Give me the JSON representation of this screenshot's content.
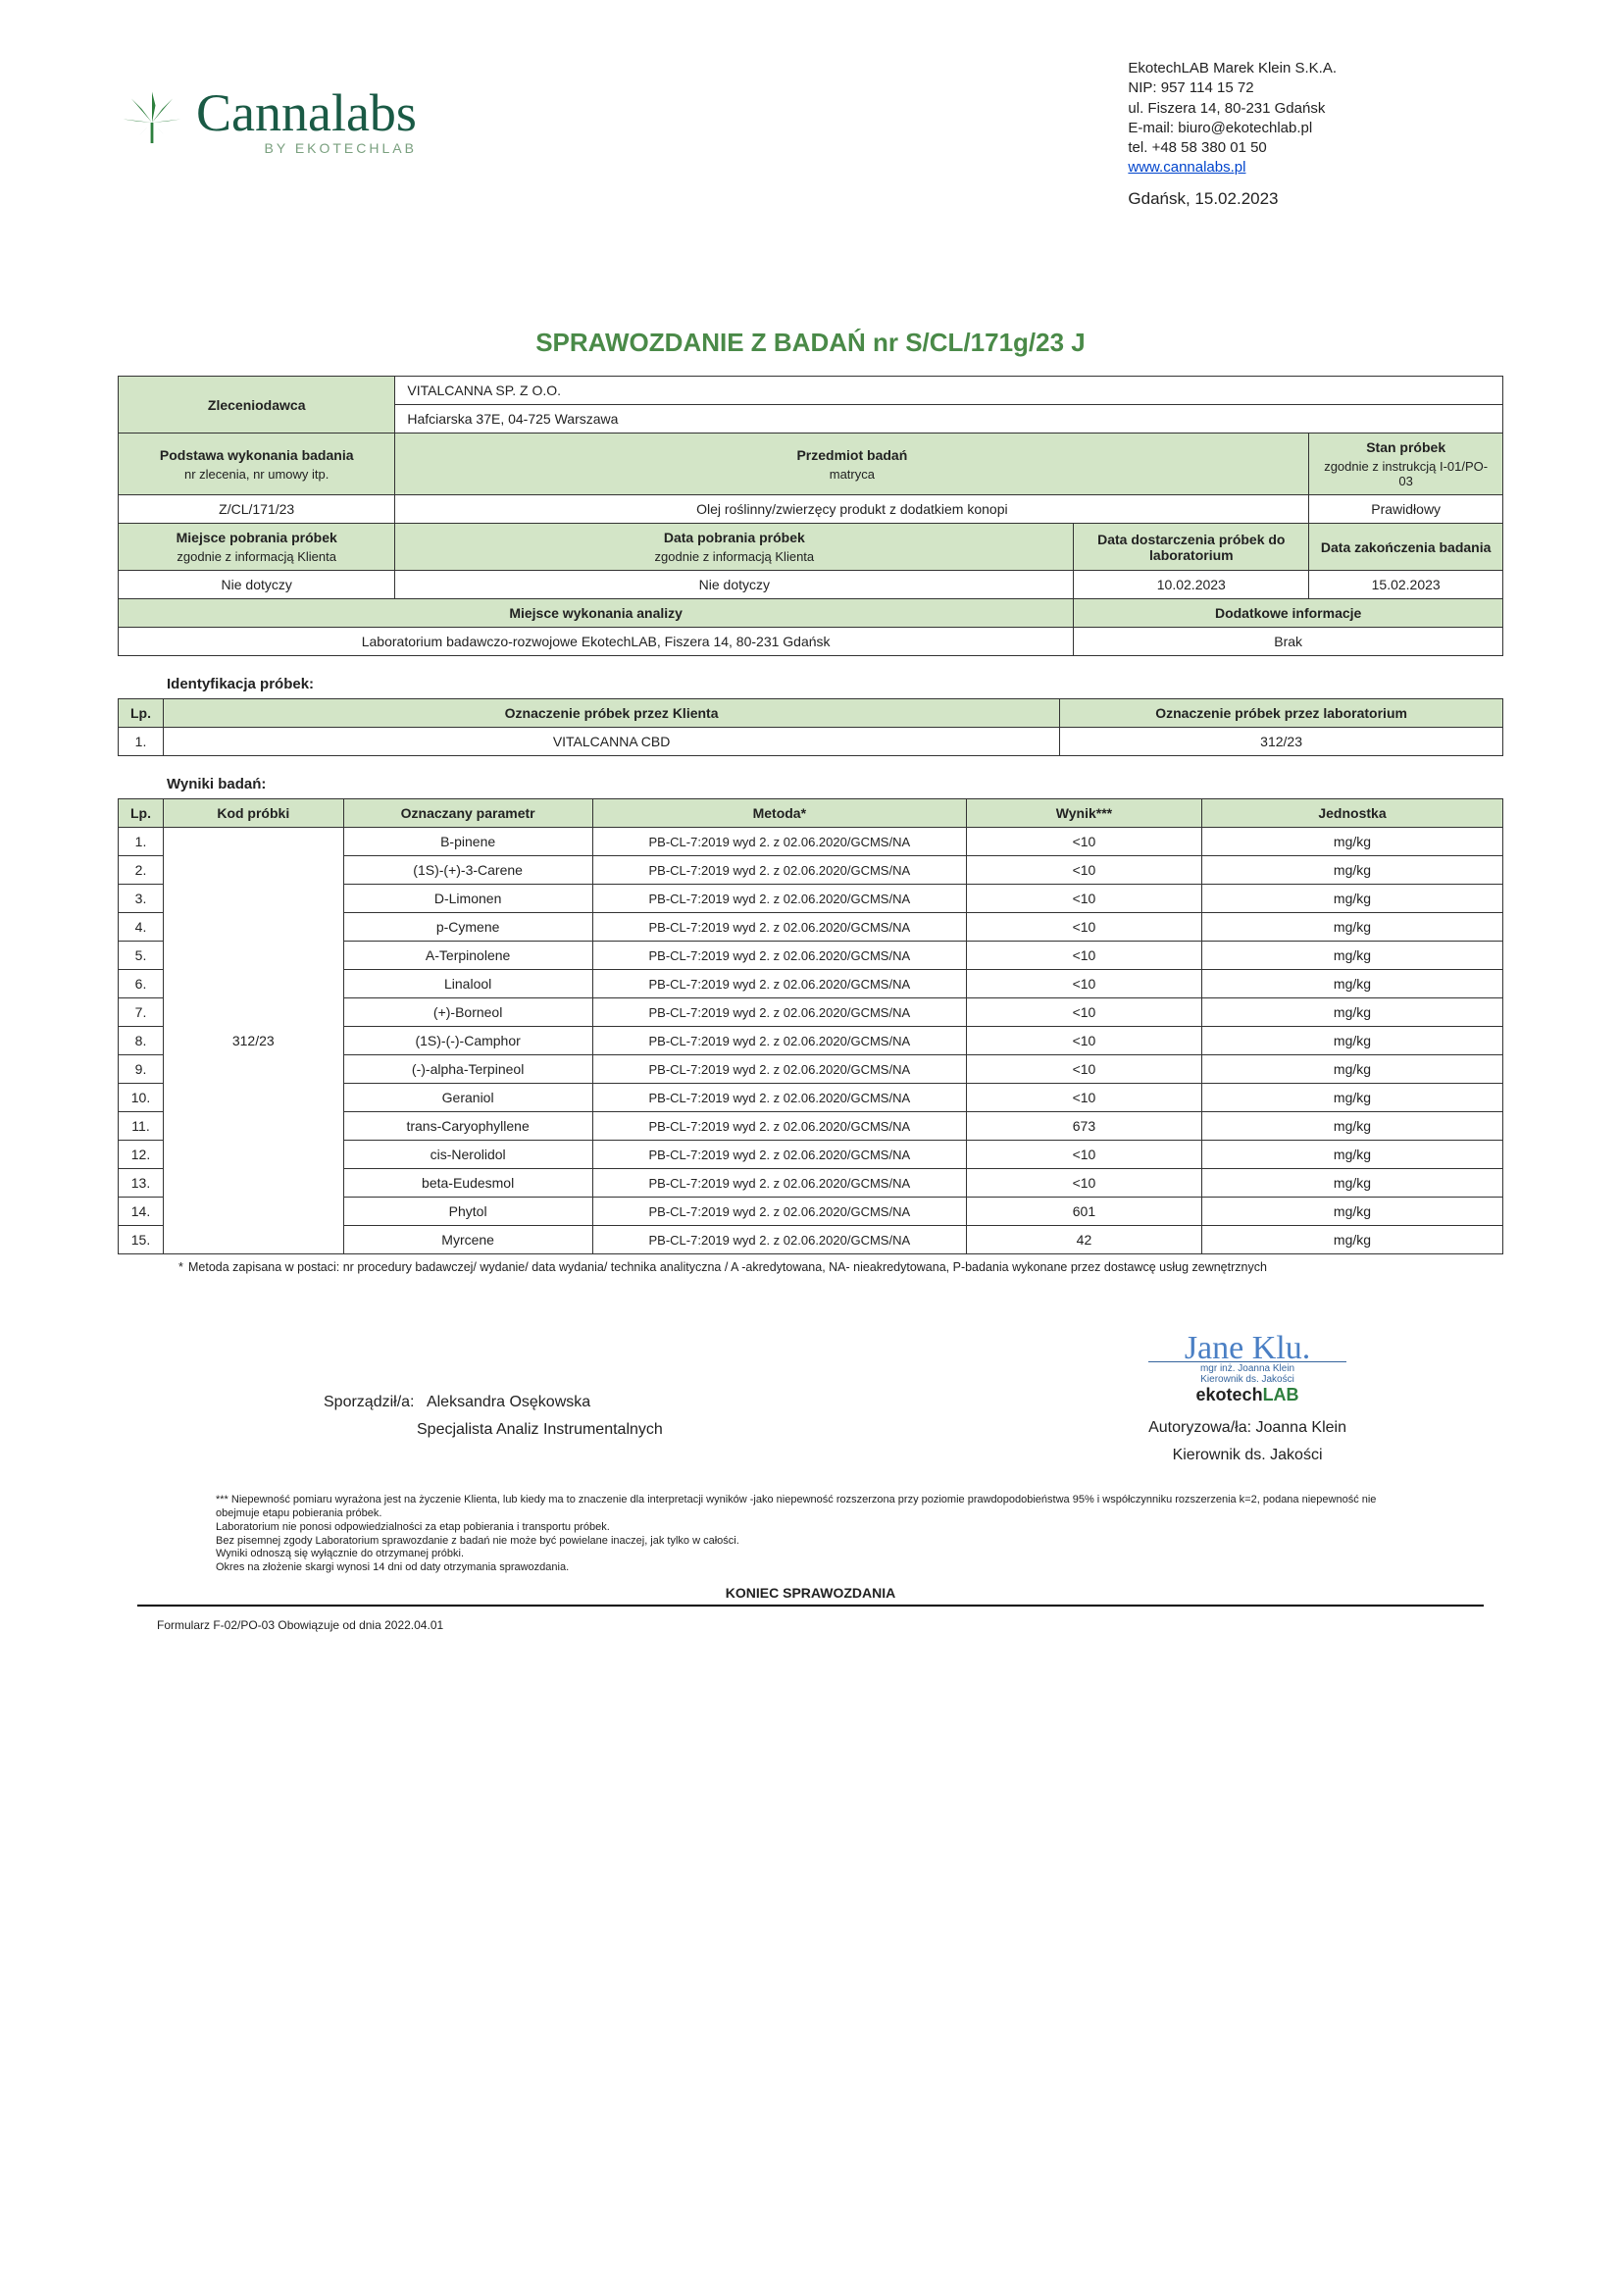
{
  "company": {
    "name": "EkotechLAB Marek Klein S.K.A.",
    "nip": "NIP: 957 114 15 72",
    "address": "ul. Fiszera 14, 80-231 Gdańsk",
    "email": "E-mail: biuro@ekotechlab.pl",
    "tel": "tel. +48 58 380 01 50",
    "web": "www.cannalabs.pl",
    "city_date": "Gdańsk,   15.02.2023"
  },
  "logo": {
    "main": "Cannalabs",
    "sub": "BY EKOTECHLAB"
  },
  "title": "SPRAWOZDANIE Z BADAŃ nr  S/CL/171g/23 J",
  "info": {
    "zleceniodawca_label": "Zleceniodawca",
    "client_name": "VITALCANNA SP. Z O.O.",
    "client_addr": "Hafciarska 37E, 04-725 Warszawa",
    "podstawa_h": "Podstawa wykonania badania",
    "podstawa_sub": "nr zlecenia, nr umowy itp.",
    "przedmiot_h": "Przedmiot badań",
    "przedmiot_sub": "matryca",
    "stan_h": "Stan próbek",
    "stan_sub": "zgodnie z instrukcją I-01/PO-03",
    "podstawa_v": "Z/CL/171/23",
    "przedmiot_v": "Olej roślinny/zwierzęcy produkt z dodatkiem konopi",
    "stan_v": "Prawidłowy",
    "miejsce_pob_h": "Miejsce pobrania próbek",
    "miejsce_pob_sub": "zgodnie z informacją Klienta",
    "data_pob_h": "Data pobrania próbek",
    "data_pob_sub": "zgodnie z informacją Klienta",
    "data_dost_h": "Data dostarczenia próbek do laboratorium",
    "data_zak_h": "Data zakończenia badania",
    "miejsce_pob_v": "Nie dotyczy",
    "data_pob_v": "Nie dotyczy",
    "data_dost_v": "10.02.2023",
    "data_zak_v": "15.02.2023",
    "miejsce_wyk_h": "Miejsce wykonania analizy",
    "dodatkowe_h": "Dodatkowe informacje",
    "miejsce_wyk_v": "Laboratorium badawczo-rozwojowe EkotechLAB, Fiszera 14, 80-231 Gdańsk",
    "dodatkowe_v": "Brak"
  },
  "ident": {
    "title": "Identyfikacja próbek:",
    "lp_h": "Lp.",
    "klient_h": "Oznaczenie  próbek przez Klienta",
    "lab_h": "Oznaczenie próbek przez laboratorium",
    "lp": "1.",
    "klient_v": "VITALCANNA CBD",
    "lab_v": "312/23"
  },
  "results": {
    "title": "Wyniki badań:",
    "headers": {
      "lp": "Lp.",
      "kod": "Kod próbki",
      "param": "Oznaczany parametr",
      "metoda": "Metoda*",
      "wynik": "Wynik***",
      "jedn": "Jednostka"
    },
    "kod": "312/23",
    "metoda": "PB-CL-7:2019 wyd 2. z 02.06.2020/GCMS/NA",
    "jedn": "mg/kg",
    "rows": [
      {
        "lp": "1.",
        "param": "B-pinene",
        "wynik": "<10"
      },
      {
        "lp": "2.",
        "param": "(1S)-(+)-3-Carene",
        "wynik": "<10"
      },
      {
        "lp": "3.",
        "param": "D-Limonen",
        "wynik": "<10"
      },
      {
        "lp": "4.",
        "param": "p-Cymene",
        "wynik": "<10"
      },
      {
        "lp": "5.",
        "param": "A-Terpinolene",
        "wynik": "<10"
      },
      {
        "lp": "6.",
        "param": "Linalool",
        "wynik": "<10"
      },
      {
        "lp": "7.",
        "param": "(+)-Borneol",
        "wynik": "<10"
      },
      {
        "lp": "8.",
        "param": "(1S)-(-)-Camphor",
        "wynik": "<10"
      },
      {
        "lp": "9.",
        "param": "(-)-alpha-Terpineol",
        "wynik": "<10"
      },
      {
        "lp": "10.",
        "param": "Geraniol",
        "wynik": "<10"
      },
      {
        "lp": "11.",
        "param": "trans-Caryophyllene",
        "wynik": "673"
      },
      {
        "lp": "12.",
        "param": "cis-Nerolidol",
        "wynik": "<10"
      },
      {
        "lp": "13.",
        "param": "beta-Eudesmol",
        "wynik": "<10"
      },
      {
        "lp": "14.",
        "param": "Phytol",
        "wynik": "601"
      },
      {
        "lp": "15.",
        "param": "Myrcene",
        "wynik": "42"
      }
    ]
  },
  "method_note": "Metoda zapisana w postaci: nr procedury badawczej/ wydanie/ data wydania/ technika analityczna / A -akredytowana, NA- nieakredytowana, P-badania wykonane przez dostawcę usług zewnętrznych",
  "sign": {
    "prepared_label": "Sporządził/a:",
    "prepared_name": "Aleksandra Osękowska",
    "prepared_title": "Specjalista Analiz Instrumentalnych",
    "auth_label": "Autoryzowa/ła: Joanna Klein",
    "auth_title": "Kierownik ds. Jakości",
    "stamp_name": "mgr inż. Joanna Klein",
    "stamp_title": "Kierownik ds. Jakości",
    "stamp_logo1": "ekotech",
    "stamp_logo2": "LAB"
  },
  "disclaimer": "*** Niepewność pomiaru wyrażona jest na życzenie Klienta,  lub kiedy ma to znaczenie dla interpretacji wyników -jako niepewność rozszerzona przy poziomie prawdopodobieństwa 95% i współczynniku rozszerzenia k=2, podana niepewność nie obejmuje etapu pobierania próbek.\nLaboratorium nie ponosi odpowiedzialności za etap pobierania i transportu próbek.\nBez pisemnej zgody Laboratorium sprawozdanie z badań nie może być powielane inaczej, jak tylko w całości.\nWyniki odnoszą się wyłącznie do otrzymanej próbki.\nOkres na złożenie skargi wynosi 14 dni od daty otrzymania sprawozdania.",
  "end": "KONIEC SPRAWOZDANIA",
  "form": "Formularz F-02/PO-03 Obowiązuje od dnia 2022.04.01",
  "colors": {
    "header_bg": "#d3e5c7",
    "title": "#4a8a48",
    "border": "#333"
  }
}
